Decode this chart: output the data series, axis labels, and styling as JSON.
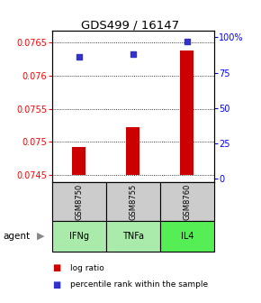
{
  "title": "GDS499 / 16147",
  "samples": [
    "GSM8750",
    "GSM8755",
    "GSM8760"
  ],
  "agents": [
    "IFNg",
    "TNFa",
    "IL4"
  ],
  "log_ratio_values": [
    0.07492,
    0.07522,
    0.07638
  ],
  "log_ratio_baseline": 0.0745,
  "percentile_values": [
    86,
    88,
    97
  ],
  "ylim_left": [
    0.0744,
    0.07668
  ],
  "ylim_right": [
    -2,
    105
  ],
  "yticks_left": [
    0.0745,
    0.075,
    0.0755,
    0.076,
    0.0765
  ],
  "yticks_right": [
    0,
    25,
    50,
    75,
    100
  ],
  "bar_color": "#cc0000",
  "dot_color": "#3333cc",
  "agent_colors": [
    "#aaeaaa",
    "#aaeaaa",
    "#55ee55"
  ],
  "sample_bg_color": "#cccccc",
  "legend_bar_label": "log ratio",
  "legend_dot_label": "percentile rank within the sample",
  "bar_width": 0.25
}
